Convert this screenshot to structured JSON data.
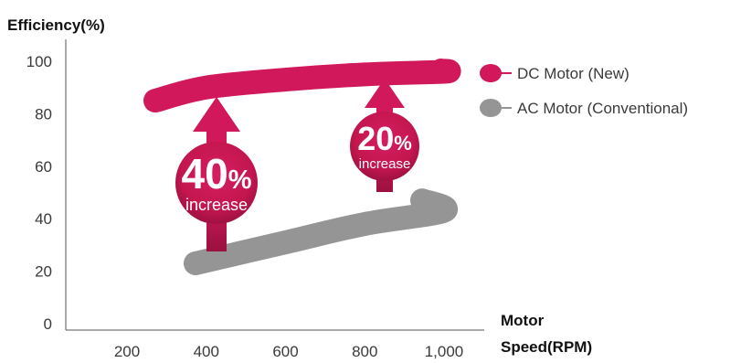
{
  "chart_data": {
    "type": "line",
    "ylabel": "Efficiency(%)",
    "xlabel_line1": "Motor",
    "xlabel_line2": "Speed(RPM)",
    "ylim": [
      0,
      100
    ],
    "xlim": [
      50,
      1150
    ],
    "y_ticks": [
      "0",
      "20",
      "40",
      "60",
      "80",
      "100"
    ],
    "x_ticks": [
      "200",
      "400",
      "600",
      "800",
      "1,000"
    ],
    "x_tick_values": [
      200,
      400,
      600,
      800,
      1000
    ],
    "grid": false,
    "legend_position": "top-right",
    "series": [
      {
        "name": "DC Motor (New)",
        "color": "#d1185a",
        "x": [
          200,
          400,
          600,
          800,
          1000,
          1150
        ],
        "y": [
          85,
          90,
          93,
          95,
          96,
          96.5
        ]
      },
      {
        "name": "AC Motor (Conventional)",
        "color": "#959595",
        "x": [
          400,
          600,
          800,
          1000,
          1150
        ],
        "y": [
          23,
          31,
          38,
          43,
          47
        ]
      }
    ],
    "annotations": [
      {
        "value": "40",
        "unit": "%",
        "word": "increase",
        "x": 450,
        "from": 25,
        "to": 86
      },
      {
        "value": "20",
        "unit": "%",
        "word": "increase",
        "x": 900,
        "from": 49,
        "to": 94
      }
    ]
  }
}
